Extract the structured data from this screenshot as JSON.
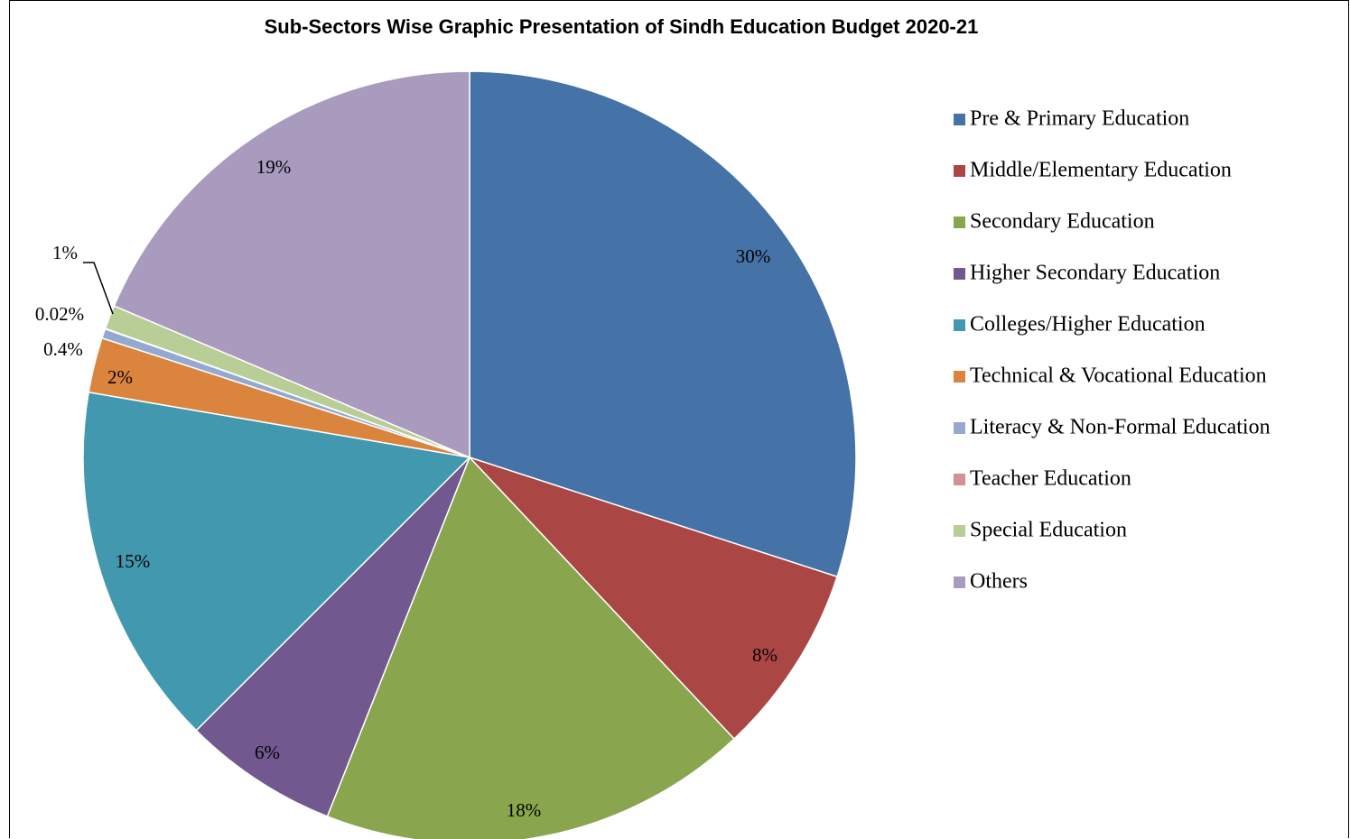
{
  "chart_data": {
    "type": "pie",
    "title": "Sub-Sectors Wise Graphic Presentation of Sindh Education Budget 2020-21",
    "legend_position": "right",
    "slices": [
      {
        "name": "Pre & Primary Education",
        "value": 30.0,
        "label": "30%",
        "color": "#4572A7"
      },
      {
        "name": "Middle/Elementary Education",
        "value": 8.0,
        "label": "8%",
        "color": "#AA4643"
      },
      {
        "name": "Secondary Education",
        "value": 18.0,
        "label": "18%",
        "color": "#89A54E"
      },
      {
        "name": "Higher Secondary Education",
        "value": 6.5,
        "label": "6%",
        "color": "#71588F"
      },
      {
        "name": "Colleges/Higher Education",
        "value": 15.2,
        "label": "15%",
        "color": "#4198AF"
      },
      {
        "name": "Technical & Vocational Education",
        "value": 2.3,
        "label": "2%",
        "color": "#DB843D"
      },
      {
        "name": "Literacy & Non-Formal Education",
        "value": 0.4,
        "label": "0.4%",
        "color": "#93A9CF"
      },
      {
        "name": "Teacher Education",
        "value": 0.02,
        "label": "0.02%",
        "color": "#D19392"
      },
      {
        "name": "Special Education",
        "value": 1.0,
        "label": "1%",
        "color": "#B9CD96"
      },
      {
        "name": "Others",
        "value": 18.58,
        "label": "19%",
        "color": "#A99BBD"
      }
    ]
  }
}
